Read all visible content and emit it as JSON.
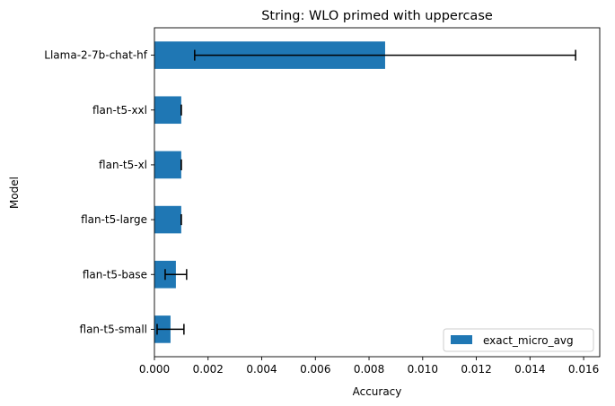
{
  "chart_data": {
    "type": "bar",
    "orientation": "horizontal",
    "title": "String: WLO primed with uppercase",
    "xlabel": "Accuracy",
    "ylabel": "Model",
    "xlim": [
      0,
      0.0166
    ],
    "xticks": [
      0.0,
      0.002,
      0.004,
      0.006,
      0.008,
      0.01,
      0.012,
      0.014,
      0.016
    ],
    "xtick_labels": [
      "0.000",
      "0.002",
      "0.004",
      "0.006",
      "0.008",
      "0.010",
      "0.012",
      "0.014",
      "0.016"
    ],
    "categories": [
      "flan-t5-small",
      "flan-t5-base",
      "flan-t5-large",
      "flan-t5-xl",
      "flan-t5-xxl",
      "Llama-2-7b-chat-hf"
    ],
    "series": [
      {
        "name": "exact_micro_avg",
        "color": "#1f77b4",
        "values": [
          0.0006,
          0.0008,
          0.001,
          0.001,
          0.001,
          0.0086
        ],
        "error_low": [
          0.0001,
          0.0004,
          0.001,
          0.001,
          0.001,
          0.0015
        ],
        "error_high": [
          0.0011,
          0.0012,
          0.001,
          0.001,
          0.001,
          0.0157
        ]
      }
    ],
    "grid": false,
    "legend_position": "lower-right"
  }
}
